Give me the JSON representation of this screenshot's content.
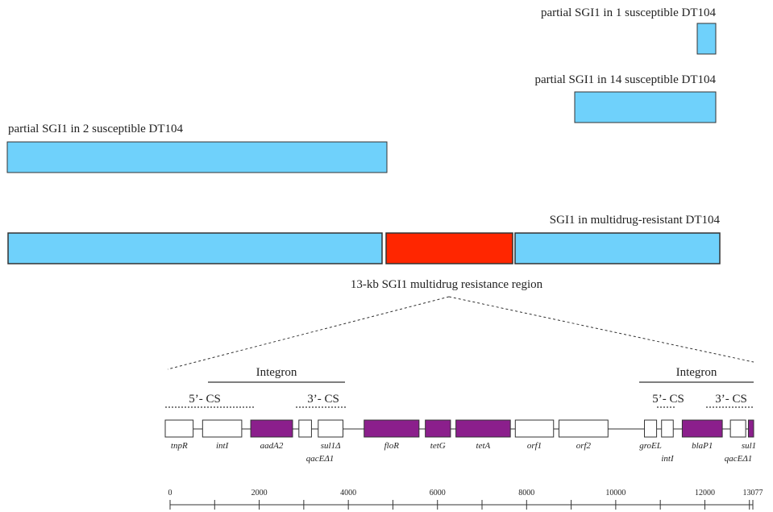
{
  "colors": {
    "sgi_blue": "#6fd1fb",
    "resistance_red": "#ff2600",
    "resistance_gene_purple": "#8b1f8c",
    "outline": "#333333",
    "plain_gene": "#ffffff"
  },
  "tracks": [
    {
      "label": "partial SGI1 in 1 susceptible DT104"
    },
    {
      "label": "partial SGI1 in 14 susceptible DT104"
    },
    {
      "label": "partial SGI1 in 2 susceptible DT104"
    },
    {
      "label": "SGI1 in multidrug-resistant DT104"
    }
  ],
  "region_label": "13-kb SGI1 multidrug resistance region",
  "integron_label": "Integron",
  "cs_labels": {
    "five_prime": "5’- CS",
    "three_prime": "3’- CS"
  },
  "genes": [
    {
      "name": "tnpR",
      "start": 0,
      "end": 620,
      "resistance": false
    },
    {
      "name": "intI",
      "start": 830,
      "end": 1700,
      "resistance": false
    },
    {
      "name": "aadA2",
      "start": 1900,
      "end": 2830,
      "resistance": true
    },
    {
      "name": "qacEΔ1",
      "start": 2970,
      "end": 3250,
      "resistance": false
    },
    {
      "name": "sul1Δ",
      "start": 3400,
      "end": 3950,
      "resistance": false
    },
    {
      "name": "floR",
      "start": 4420,
      "end": 5640,
      "resistance": true
    },
    {
      "name": "tetG",
      "start": 5780,
      "end": 6340,
      "resistance": true
    },
    {
      "name": "tetA",
      "start": 6460,
      "end": 7670,
      "resistance": true
    },
    {
      "name": "orf1",
      "start": 7780,
      "end": 8630,
      "resistance": false
    },
    {
      "name": "orf2",
      "start": 8750,
      "end": 9840,
      "resistance": false
    },
    {
      "name": "groEL",
      "start": 10650,
      "end": 10920,
      "resistance": false
    },
    {
      "name": "intI",
      "start": 11030,
      "end": 11290,
      "resistance": false
    },
    {
      "name": "blaP1",
      "start": 11490,
      "end": 12380,
      "resistance": true
    },
    {
      "name": "qacEΔ1",
      "start": 12560,
      "end": 12900,
      "resistance": false
    },
    {
      "name": "sul1",
      "start": 12960,
      "end": 13077,
      "resistance": true
    }
  ],
  "scale": {
    "min": 0,
    "max": 13077,
    "tick_labels": [
      "0",
      "2000",
      "4000",
      "6000",
      "8000",
      "10000",
      "12000",
      "13077"
    ]
  }
}
